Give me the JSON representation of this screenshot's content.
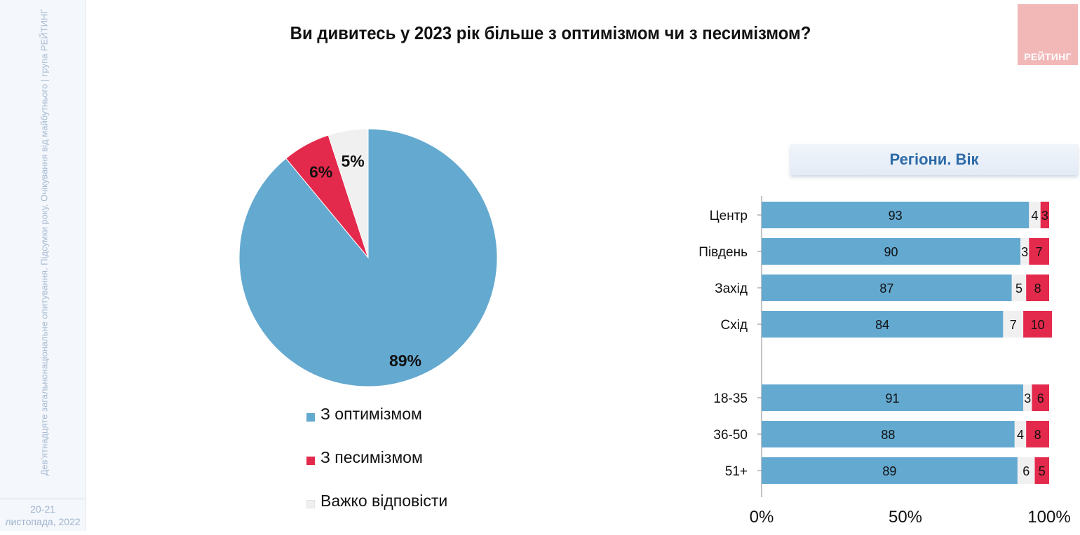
{
  "sidebar": {
    "vertical_text": "Дев'ятнадцяте загальнонаціональне опитування. Підсумки року. Очікування від майбутнього | група РЕЙТИНГ",
    "date_line1": "20-21",
    "date_line2": "листопада, 2022"
  },
  "logo_text": "РЕЙТИНГ",
  "colors": {
    "optimism": "#64a9d0",
    "pessimism": "#e42a4c",
    "hard_to_say": "#f0f0f0",
    "header_text": "#2c6aa8"
  },
  "chart_data": [
    {
      "type": "pie",
      "title": "Ви дивитесь у 2023 рік більше з оптимізмом чи з песимізмом?",
      "slices": [
        {
          "label": "З оптимізмом",
          "value": 89,
          "display": "89%"
        },
        {
          "label": "З песимізмом",
          "value": 6,
          "display": "6%"
        },
        {
          "label": "Важко відповісти",
          "value": 5,
          "display": "5%"
        }
      ],
      "legend": [
        "З оптимізмом",
        "З песимізмом",
        "Важко відповісти"
      ]
    },
    {
      "type": "bar",
      "orientation": "horizontal",
      "stacked": true,
      "title": "Регіони. Вік",
      "categories": [
        "Центр",
        "Південь",
        "Захід",
        "Схід",
        "18-35",
        "36-50",
        "51+"
      ],
      "series": [
        {
          "name": "З оптимізмом",
          "values": [
            93,
            90,
            87,
            84,
            91,
            88,
            89
          ]
        },
        {
          "name": "Важко відповісти",
          "values": [
            4,
            3,
            5,
            7,
            3,
            4,
            6
          ]
        },
        {
          "name": "З песимізмом",
          "values": [
            3,
            7,
            8,
            10,
            6,
            8,
            5
          ]
        }
      ],
      "xlim": [
        0,
        100
      ],
      "x_ticks": [
        "0%",
        "50%",
        "100%"
      ]
    }
  ]
}
